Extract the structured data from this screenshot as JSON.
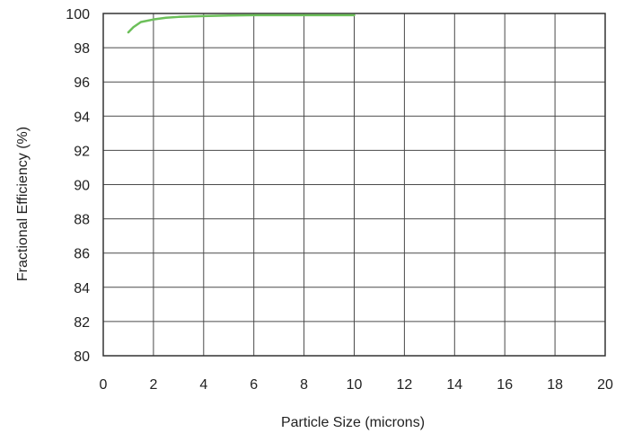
{
  "chart_data": {
    "type": "line",
    "title": "",
    "xlabel": "Particle Size (microns)",
    "ylabel": "Fractional Efficiency (%)",
    "xlim": [
      0,
      20
    ],
    "ylim": [
      80,
      100
    ],
    "xticks": [
      "0",
      "2",
      "4",
      "6",
      "8",
      "10",
      "12",
      "14",
      "16",
      "18",
      "20"
    ],
    "yticks": [
      "80",
      "82",
      "84",
      "86",
      "88",
      "90",
      "92",
      "94",
      "96",
      "98",
      "100"
    ],
    "grid": true,
    "legend": "none",
    "series": [
      {
        "color": "#6cbf5a",
        "x": [
          1.0,
          1.2,
          1.5,
          2.0,
          2.5,
          3.0,
          4.0,
          5.0,
          6.0,
          7.0,
          8.0,
          9.0,
          10.0
        ],
        "y": [
          98.9,
          99.2,
          99.5,
          99.65,
          99.75,
          99.8,
          99.85,
          99.88,
          99.9,
          99.9,
          99.9,
          99.9,
          99.9
        ]
      }
    ]
  }
}
